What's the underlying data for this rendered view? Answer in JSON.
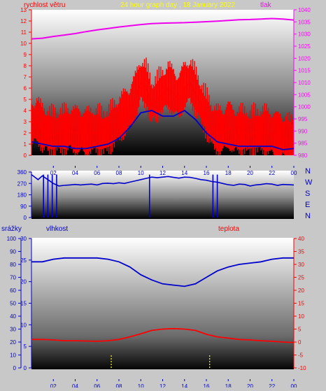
{
  "header": {
    "left_label": "rychlost větru",
    "center_label": "24 hour graph day , 18 January 2022",
    "right_label": "tlak"
  },
  "middle": {
    "compass_letters": [
      "N",
      "W",
      "S",
      "E",
      "N"
    ]
  },
  "bottom_header": {
    "label_precip": "srážky",
    "label_humidity": "vlhkost",
    "label_temperature": "teplota"
  },
  "colors": {
    "wind_speed": "#ff0000",
    "wind_gust": "#0000cc",
    "pressure": "#ee00ee",
    "direction": "#0000cc",
    "humidity": "#0000cc",
    "temperature": "#ff0000",
    "precip": "#ffff00",
    "left_axis_top": "#ff0000",
    "left_axis_bottom": "#0000cc",
    "right_axis_top": "#ff00ff",
    "right_axis_bottom": "#ff0000",
    "x_axis": "#0000cc",
    "title_yellow": "#ffff00"
  },
  "chart_data": [
    {
      "id": "wind_pressure",
      "type": "line",
      "x_ticks": [
        "02",
        "04",
        "06",
        "08",
        "10",
        "12",
        "14",
        "16",
        "18",
        "20",
        "22",
        "00"
      ],
      "x_range_hours": [
        0,
        24
      ],
      "left_axis": {
        "ticks": [
          "0",
          "1",
          "2",
          "3",
          "4",
          "5",
          "6",
          "7",
          "8",
          "9",
          "10",
          "11",
          "12",
          "13"
        ],
        "range": [
          0,
          13
        ]
      },
      "right_axis": {
        "ticks": [
          "980",
          "985",
          "990",
          "995",
          "1000",
          "1005",
          "1010",
          "1015",
          "1020",
          "1025",
          "1030",
          "1035",
          "1040"
        ],
        "range": [
          980,
          1040
        ]
      },
      "series": [
        {
          "name": "rychlost větru",
          "axis": "left",
          "x": [
            0,
            0.5,
            1,
            1.5,
            2,
            2.5,
            3,
            3.5,
            4,
            4.5,
            5,
            5.5,
            6,
            6.5,
            7,
            7.5,
            8,
            8.5,
            9,
            9.5,
            10,
            10.5,
            11,
            11.5,
            12,
            12.5,
            13,
            13.5,
            14,
            14.5,
            15,
            15.5,
            16,
            16.5,
            17,
            17.5,
            18,
            18.5,
            19,
            19.5,
            20,
            20.5,
            21,
            21.5,
            22,
            22.5,
            23,
            23.5,
            24
          ],
          "y": [
            2.5,
            3.0,
            2.2,
            2.0,
            1.8,
            2.0,
            2.0,
            2.2,
            2.0,
            2.0,
            1.8,
            2.0,
            2.0,
            1.8,
            2.0,
            2.5,
            3.0,
            3.5,
            4.0,
            5.0,
            6.5,
            6.0,
            4.5,
            5.0,
            5.5,
            6.0,
            5.5,
            5.0,
            6.0,
            6.5,
            5.5,
            4.5,
            3.5,
            2.5,
            2.0,
            2.0,
            2.5,
            2.0,
            2.0,
            2.0,
            1.8,
            2.0,
            2.0,
            2.0,
            1.8,
            1.5,
            1.5,
            1.2,
            1.0
          ]
        },
        {
          "name": "",
          "axis": "left",
          "x": [
            0,
            1,
            2,
            3,
            4,
            5,
            6,
            7,
            8,
            9,
            10,
            11,
            12,
            13,
            14,
            15,
            16,
            17,
            18,
            19,
            20,
            21,
            22,
            23,
            24
          ],
          "y": [
            1.2,
            1.0,
            0.8,
            0.8,
            0.6,
            0.6,
            0.8,
            1.0,
            1.5,
            2.5,
            3.8,
            4.0,
            3.5,
            3.5,
            4.0,
            3.2,
            2.0,
            1.2,
            1.0,
            0.8,
            0.8,
            0.8,
            0.8,
            0.5,
            0.6
          ]
        },
        {
          "name": "tlak",
          "axis": "right",
          "x": [
            0,
            1,
            2,
            3,
            4,
            5,
            6,
            7,
            8,
            9,
            10,
            11,
            12,
            13,
            14,
            15,
            16,
            17,
            18,
            19,
            20,
            21,
            22,
            23,
            24
          ],
          "y": [
            1028.0,
            1028.3,
            1029.0,
            1029.6,
            1030.2,
            1031.0,
            1031.7,
            1032.3,
            1032.9,
            1033.4,
            1033.9,
            1034.3,
            1034.5,
            1034.6,
            1034.7,
            1034.9,
            1035.1,
            1035.3,
            1035.6,
            1035.9,
            1036.0,
            1036.2,
            1036.4,
            1036.2,
            1035.8
          ]
        }
      ]
    },
    {
      "id": "wind_direction",
      "type": "line",
      "left_axis": {
        "ticks": [
          "0",
          "90",
          "180",
          "270",
          "360"
        ],
        "range": [
          0,
          360
        ]
      },
      "series": [
        {
          "name": "",
          "x": [
            0,
            0.3,
            0.6,
            1,
            1.5,
            2,
            2.5,
            3,
            3.5,
            4,
            4.5,
            5,
            5.5,
            6,
            6.5,
            7,
            7.5,
            8,
            8.5,
            9,
            9.5,
            10,
            10.5,
            11,
            11.5,
            12,
            12.5,
            13,
            13.5,
            14,
            14.5,
            15,
            15.5,
            16,
            16.5,
            17,
            17.5,
            18,
            18.5,
            19,
            19.5,
            20,
            20.5,
            21,
            21.5,
            22,
            22.5,
            23,
            23.5,
            24
          ],
          "y": [
            340,
            320,
            300,
            330,
            300,
            270,
            250,
            255,
            258,
            262,
            258,
            262,
            265,
            258,
            270,
            272,
            268,
            275,
            270,
            280,
            290,
            300,
            310,
            320,
            315,
            320,
            325,
            318,
            312,
            320,
            318,
            310,
            300,
            295,
            285,
            280,
            270,
            260,
            255,
            265,
            262,
            250,
            258,
            262,
            268,
            265,
            255,
            262,
            260,
            258
          ]
        }
      ]
    },
    {
      "id": "humidity_temperature",
      "type": "line",
      "left_axis_outer": {
        "ticks": [
          "0",
          "10",
          "20",
          "30",
          "40",
          "50",
          "60",
          "70",
          "80",
          "90",
          "100"
        ],
        "range": [
          0,
          100
        ]
      },
      "left_axis_inner": {
        "ticks": [
          "0",
          "5",
          "10",
          "15",
          "20",
          "25",
          "30"
        ],
        "range": [
          0,
          30
        ]
      },
      "right_axis": {
        "ticks": [
          "-10",
          "-5",
          "0",
          "5",
          "10",
          "15",
          "20",
          "25",
          "30",
          "35",
          "40"
        ],
        "range": [
          -10,
          40
        ]
      },
      "series": [
        {
          "name": "vlhkost",
          "axis": "left_outer",
          "x": [
            0,
            1,
            2,
            3,
            4,
            5,
            6,
            7,
            8,
            9,
            10,
            11,
            12,
            13,
            14,
            15,
            16,
            17,
            18,
            19,
            20,
            21,
            22,
            23,
            24
          ],
          "y": [
            82,
            82,
            84,
            85,
            85,
            85,
            85,
            84,
            82,
            78,
            72,
            68,
            65,
            64,
            63,
            65,
            70,
            75,
            78,
            80,
            81,
            82,
            84,
            85,
            85
          ]
        },
        {
          "name": "teplota",
          "axis": "right",
          "x": [
            0,
            1,
            2,
            3,
            4,
            5,
            6,
            7,
            8,
            9,
            10,
            11,
            12,
            13,
            14,
            15,
            16,
            17,
            18,
            19,
            20,
            21,
            22,
            23,
            24
          ],
          "y": [
            1.0,
            1.0,
            0.8,
            0.5,
            0.5,
            0.4,
            0.3,
            0.5,
            1.0,
            2.0,
            3.2,
            4.5,
            5.0,
            5.2,
            5.0,
            4.5,
            3.0,
            2.0,
            1.5,
            1.0,
            0.8,
            0.5,
            0.3,
            0.0,
            -0.2
          ]
        },
        {
          "name": "srážky",
          "axis": "left_outer",
          "x": [
            7.3,
            16.3
          ],
          "y": [
            10,
            10
          ]
        }
      ]
    }
  ]
}
